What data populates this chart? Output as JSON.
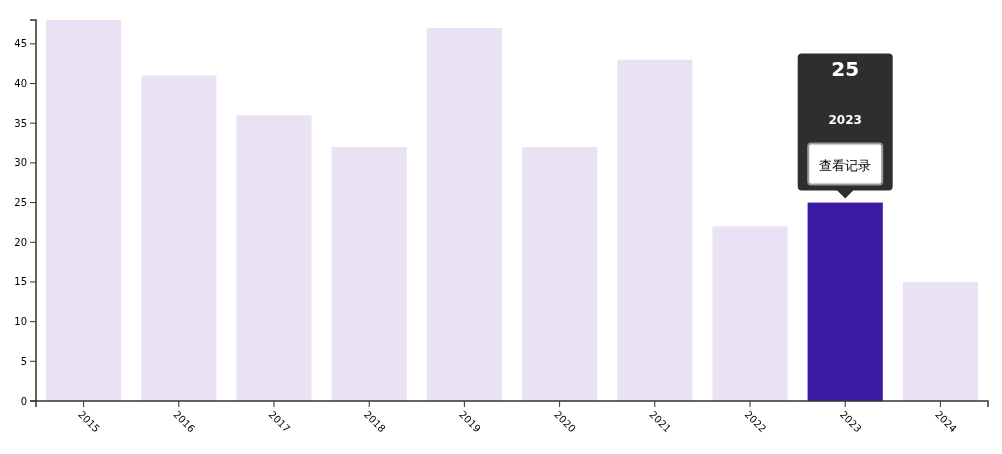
{
  "chart_data": {
    "type": "bar",
    "categories": [
      "2015",
      "2016",
      "2017",
      "2018",
      "2019",
      "2020",
      "2021",
      "2022",
      "2023",
      "2024"
    ],
    "values": [
      48,
      41,
      36,
      32,
      47,
      32,
      43,
      22,
      25,
      15
    ],
    "colors": [
      "#ebe1f5",
      "#ebe1f5",
      "#ebe1f5",
      "#ebe1f5",
      "#ebe1f5",
      "#ebe1f5",
      "#ebe1f5",
      "#ebe1f5",
      "#3d1aa6",
      "#ebe1f5"
    ],
    "ylim": [
      0,
      48
    ],
    "yticks": [
      0,
      5,
      10,
      15,
      20,
      25,
      30,
      35,
      40,
      45
    ],
    "grid": false,
    "annotations": [
      "25",
      "2023",
      "查看记录"
    ]
  }
}
